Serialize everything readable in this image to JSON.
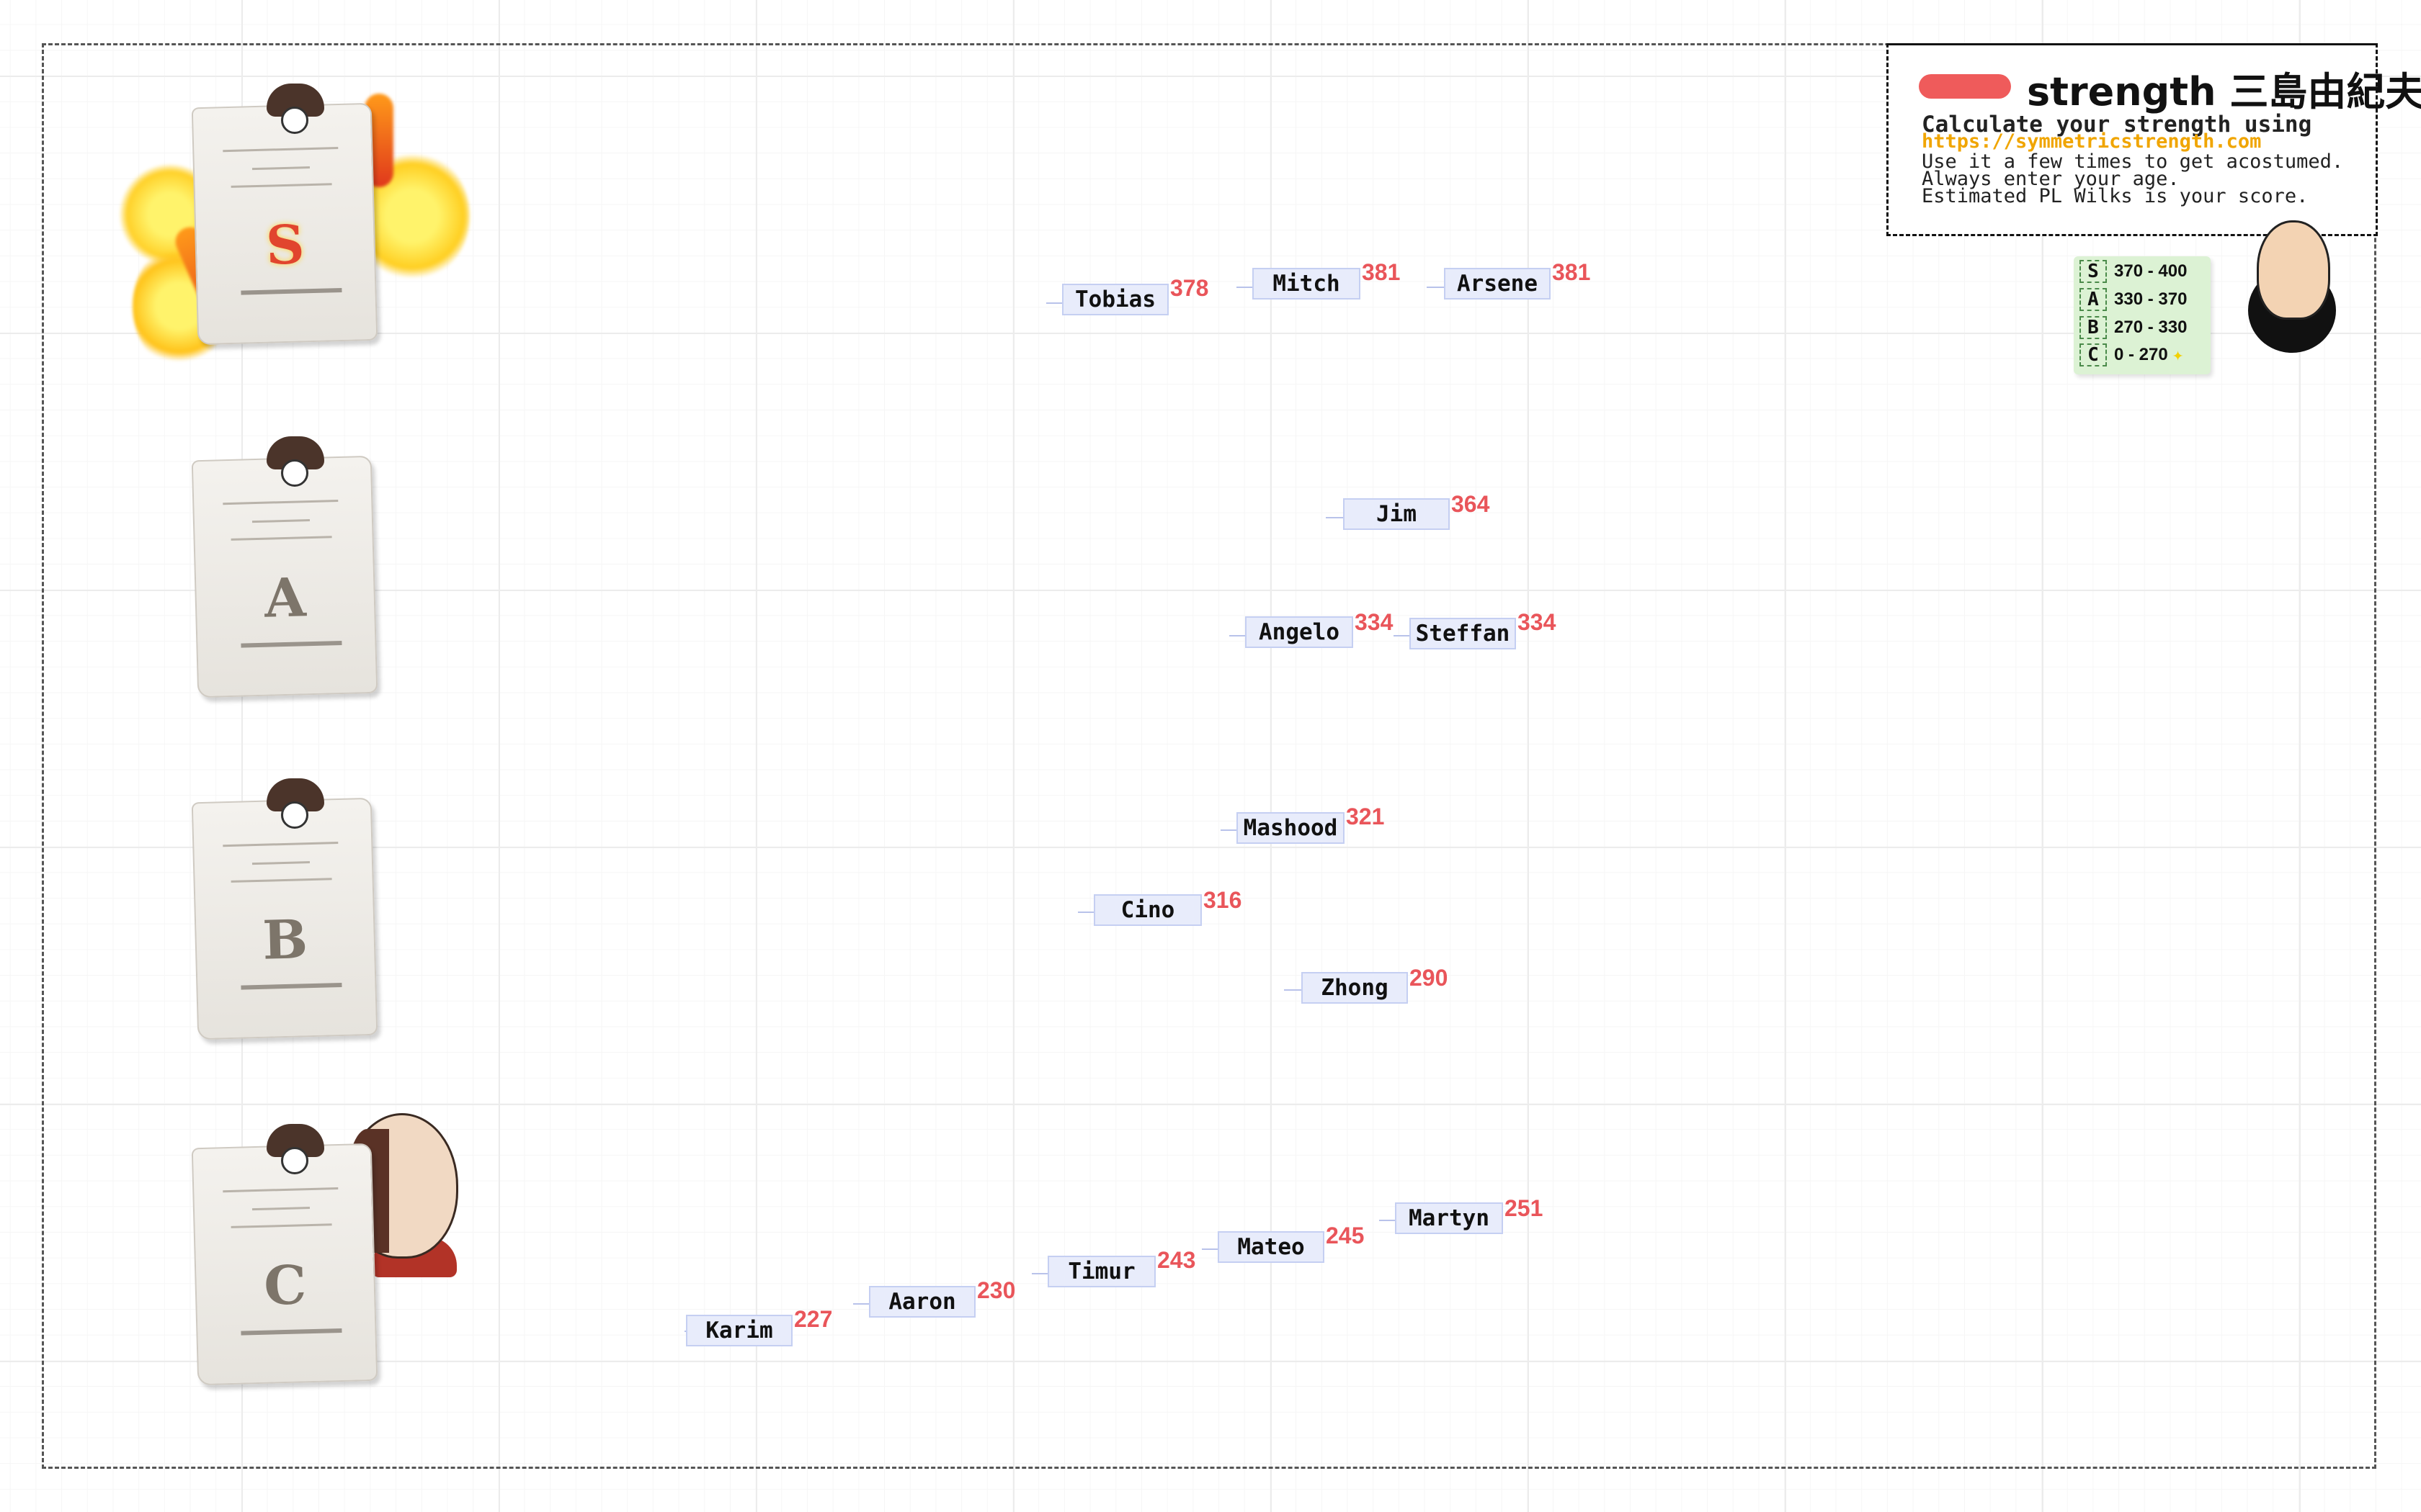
{
  "legend": {
    "title": "strength 三島由紀夫",
    "subtitle": "Calculate your strength using",
    "url": "https://symmetricstrength.com",
    "line3": "Use it a few times to get acostumed.",
    "line4": "Always enter your age.",
    "line5": "Estimated PL Wilks is your score.",
    "swatch_color": "#ef5b5b"
  },
  "tiers": [
    {
      "rank": "S",
      "range": "370 - 400"
    },
    {
      "rank": "A",
      "range": "330 - 370"
    },
    {
      "rank": "B",
      "range": "270 - 330"
    },
    {
      "rank": "C",
      "range": "0 - 270"
    }
  ],
  "ranks": [
    "S",
    "A",
    "B",
    "C"
  ],
  "people": [
    {
      "name": "Tobias",
      "score": "378"
    },
    {
      "name": "Mitch",
      "score": "381"
    },
    {
      "name": "Arsene",
      "score": "381"
    },
    {
      "name": "Jim",
      "score": "364"
    },
    {
      "name": "Angelo",
      "score": "334"
    },
    {
      "name": "Steffan",
      "score": "334"
    },
    {
      "name": "Mashood",
      "score": "321"
    },
    {
      "name": "Cino",
      "score": "316"
    },
    {
      "name": "Zhong",
      "score": "290"
    },
    {
      "name": "Martyn",
      "score": "251"
    },
    {
      "name": "Mateo",
      "score": "245"
    },
    {
      "name": "Timur",
      "score": "243"
    },
    {
      "name": "Aaron",
      "score": "230"
    },
    {
      "name": "Karim",
      "score": "227"
    }
  ],
  "colors": {
    "score": "#e9555a",
    "tag": "#e8ecfb",
    "url": "#f0a500",
    "tier_bg": "#dcf2d4"
  },
  "icons": [
    "certificate-icon",
    "fire-icon",
    "star-icon",
    "avatar-icon"
  ]
}
